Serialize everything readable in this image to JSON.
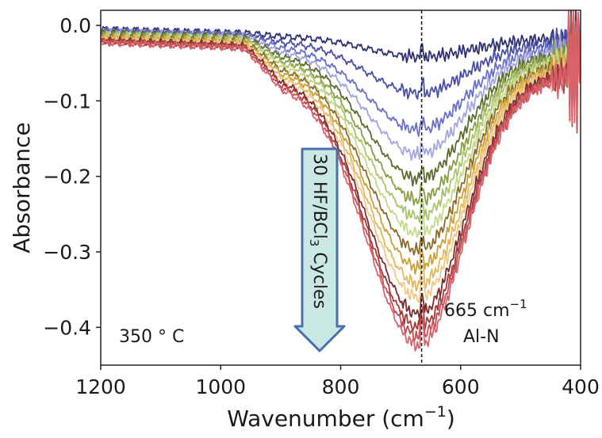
{
  "chart_data": {
    "type": "line",
    "xlabel": "Wavenumber (cm",
    "xlabel_sup": "−1",
    "xlabel_tail": ")",
    "ylabel": "Absorbance",
    "xlim": [
      1200,
      400
    ],
    "ylim": [
      -0.45,
      0.02
    ],
    "x_reversed": true,
    "grid": false,
    "xticks": [
      1200,
      1000,
      800,
      600,
      400
    ],
    "xtick_labels": [
      "1200",
      "1000",
      "800",
      "600",
      "400"
    ],
    "yticks": [
      0.0,
      -0.1,
      -0.2,
      -0.3,
      -0.4
    ],
    "ytick_labels": [
      "0.0",
      "−0.1",
      "−0.2",
      "−0.3",
      "−0.4"
    ],
    "temperature_label": "350 ° C",
    "arrow_label": "30 HF/BCl",
    "arrow_label_sub": "3",
    "arrow_label_tail": " Cycles",
    "reference_line_x": 665,
    "peak_label_value": "665 cm",
    "peak_label_sup": "−1",
    "peak_label_name": "Al-N",
    "arrow_colors": {
      "fill": "#c9e7e3",
      "stroke": "#4a6fb0"
    },
    "series": [
      {
        "color": "#2e3273",
        "min": -0.025
      },
      {
        "color": "#4a4fa6",
        "min": -0.07
      },
      {
        "color": "#6a6fcb",
        "min": -0.115
      },
      {
        "color": "#a3a5e0",
        "min": -0.145
      },
      {
        "color": "#5d6b30",
        "min": -0.175
      },
      {
        "color": "#8a9e45",
        "min": -0.2
      },
      {
        "color": "#a9c46a",
        "min": -0.22
      },
      {
        "color": "#c6d98b",
        "min": -0.24
      },
      {
        "color": "#8a6b2a",
        "min": -0.26
      },
      {
        "color": "#c7a03a",
        "min": -0.28
      },
      {
        "color": "#e4b75a",
        "min": -0.3
      },
      {
        "color": "#f0c884",
        "min": -0.315
      },
      {
        "color": "#7a2b2b",
        "min": -0.335
      },
      {
        "color": "#a33a3a",
        "min": -0.35
      },
      {
        "color": "#c44d55",
        "min": -0.36
      },
      {
        "color": "#d8636b",
        "min": -0.37
      }
    ]
  }
}
